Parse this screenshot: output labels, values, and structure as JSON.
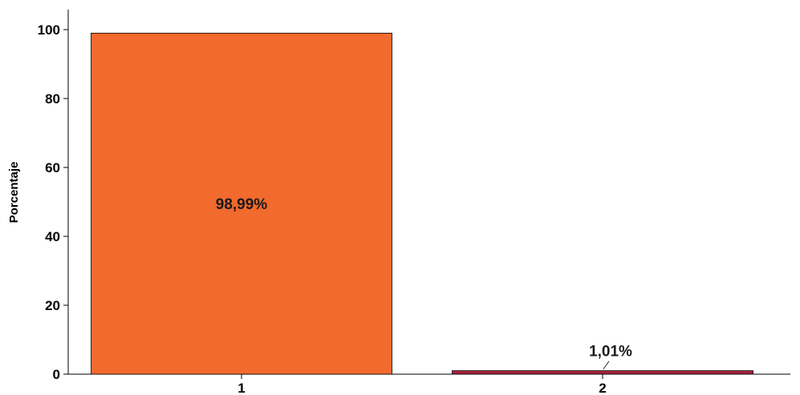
{
  "chart_data": {
    "type": "bar",
    "categories": [
      "1",
      "2"
    ],
    "values": [
      98.99,
      1.01
    ],
    "data_labels": [
      "98,99%",
      "1,01%"
    ],
    "colors": [
      "#F26A2D",
      "#A8213C"
    ],
    "title": "",
    "xlabel": "",
    "ylabel": "Porcentaje",
    "ylim": [
      0,
      100
    ],
    "yticks": [
      "0",
      "20",
      "40",
      "60",
      "80",
      "100"
    ],
    "grid": false
  }
}
